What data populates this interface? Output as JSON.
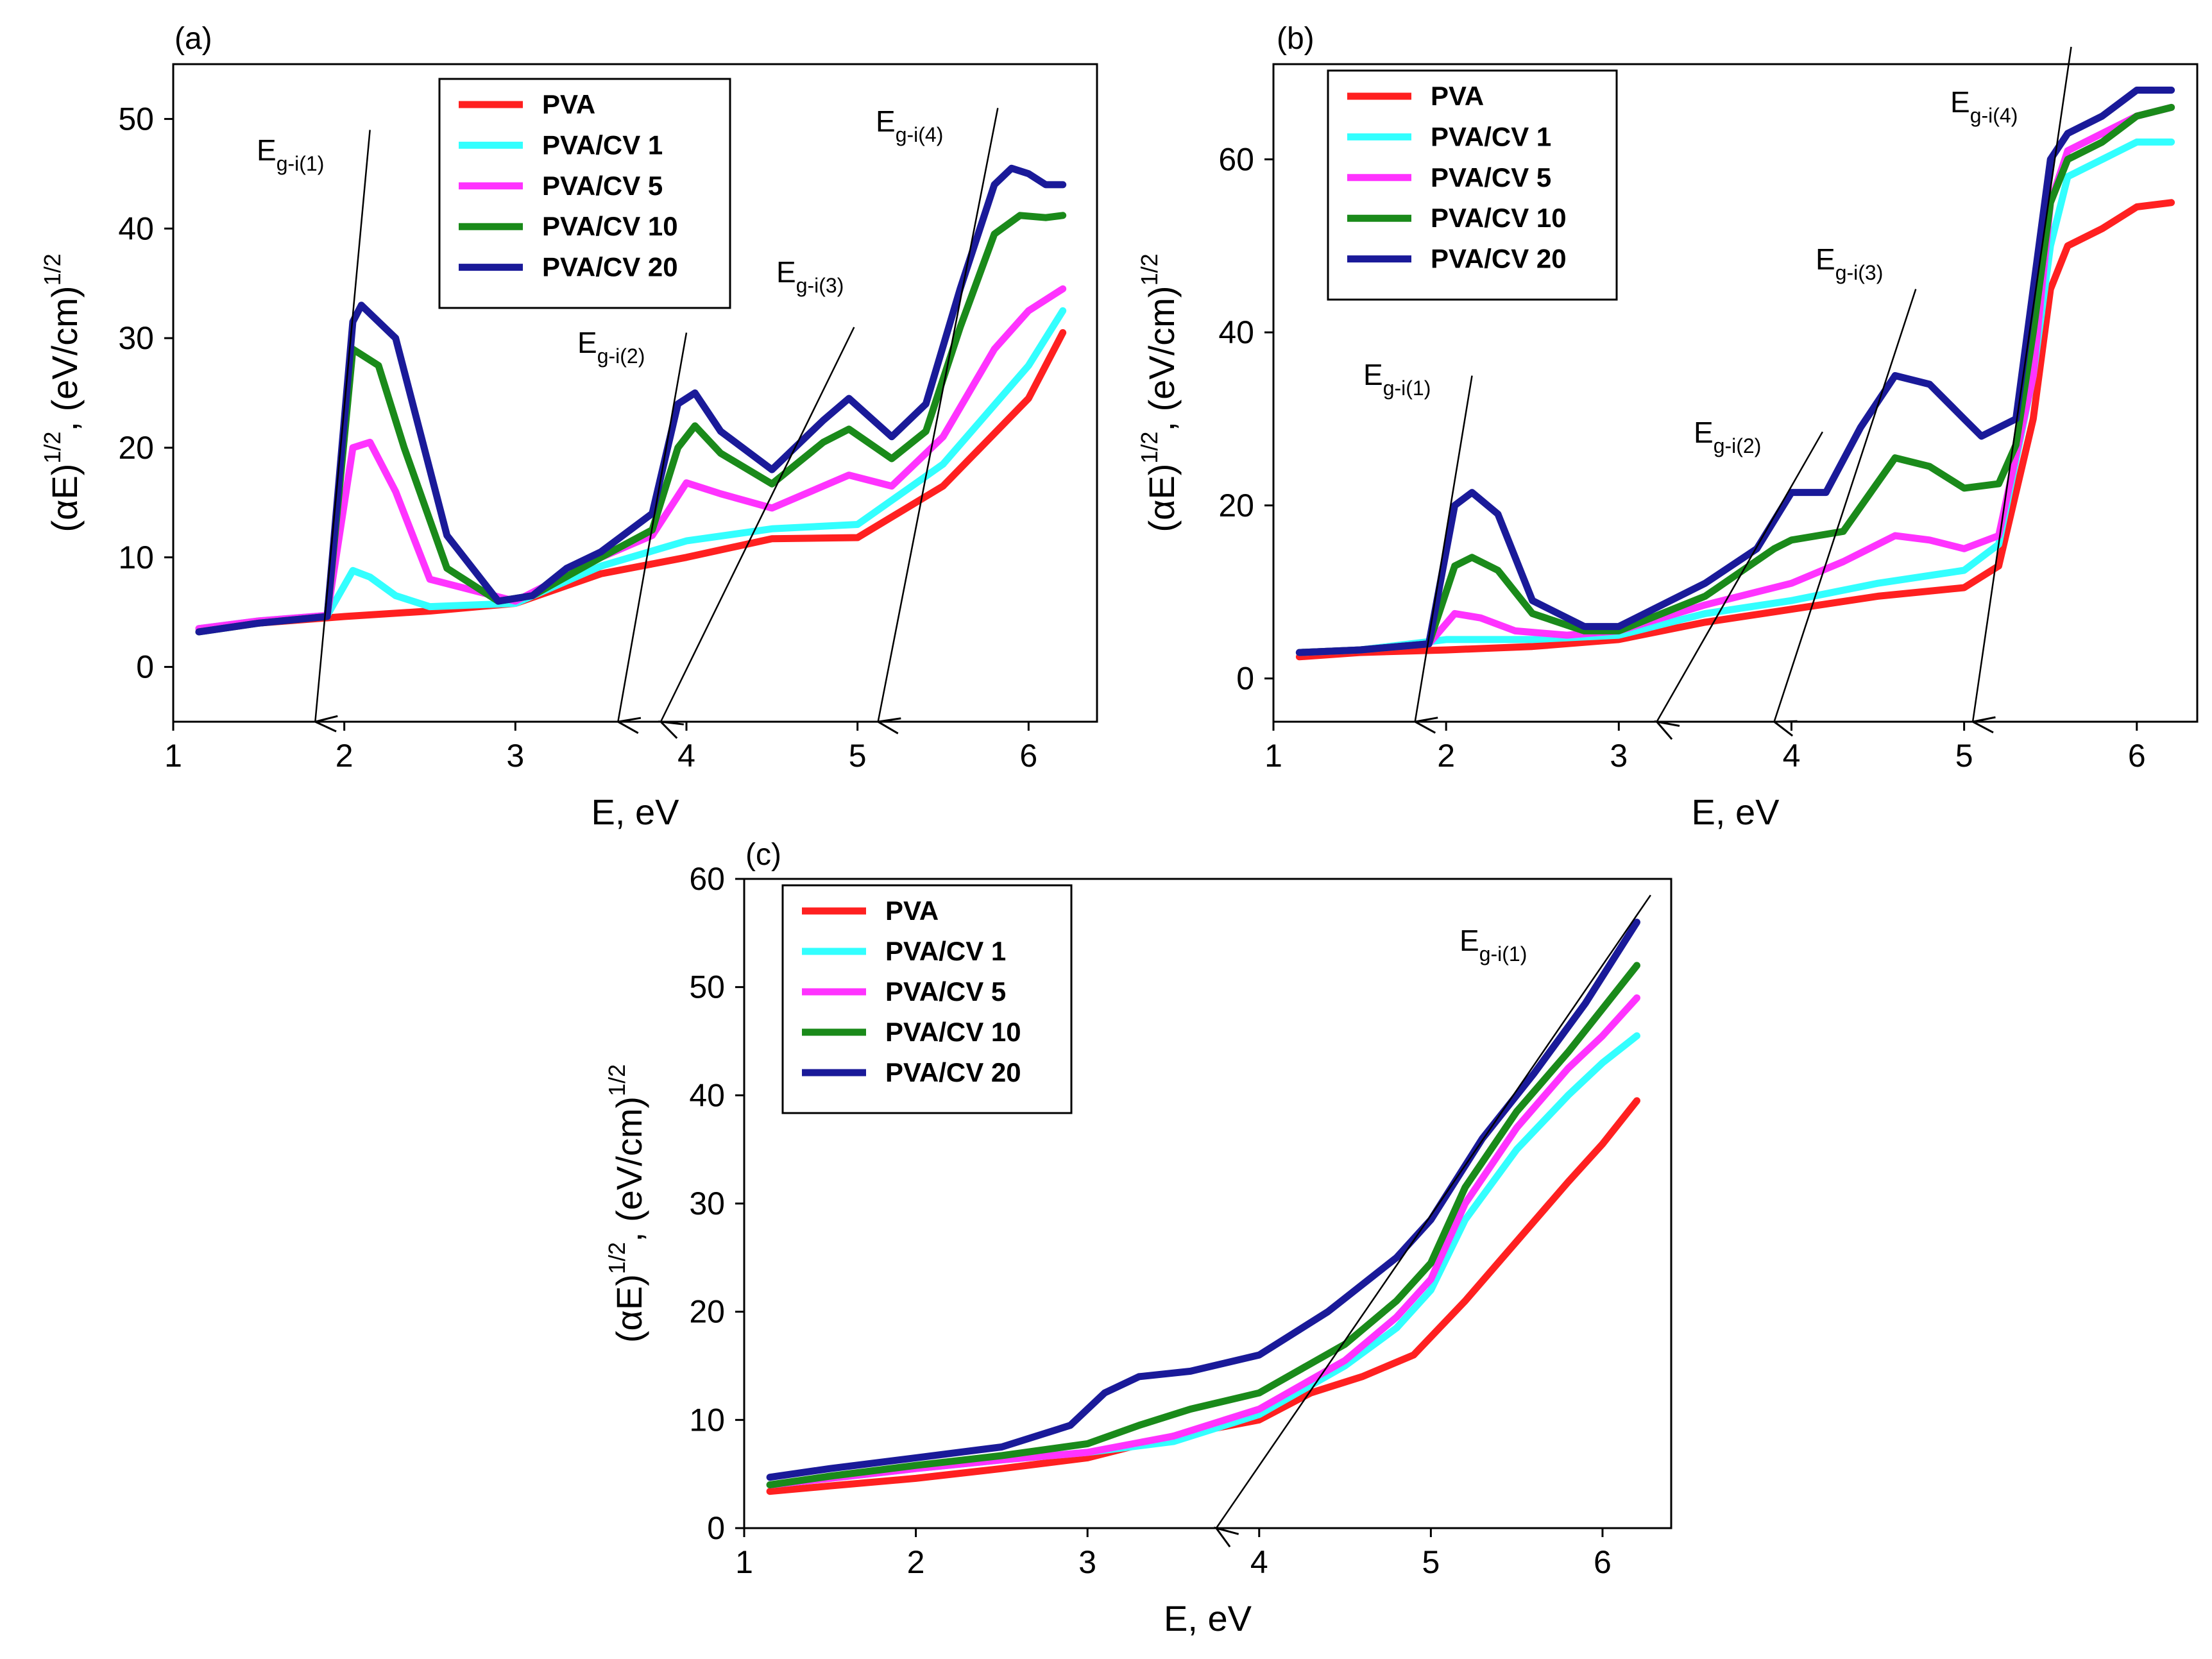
{
  "chart_data": [
    {
      "panel": "(a)",
      "type": "line",
      "xlabel": "E, eV",
      "ylabel": [
        "(αE)",
        "1/2",
        ", (eV/cm)",
        "1/2"
      ],
      "xlim": [
        1,
        6.4
      ],
      "ylim": [
        -5,
        55
      ],
      "xticks": [
        "1",
        "2",
        "3",
        "4",
        "5",
        "6"
      ],
      "yticks": [
        "0",
        "10",
        "20",
        "30",
        "40",
        "50"
      ],
      "legend": [
        "PVA",
        "PVA/CV 1",
        "PVA/CV 5",
        "PVA/CV 10",
        "PVA/CV 20"
      ],
      "legend_position": "top-center",
      "colors": [
        "#ff2020",
        "#33ffff",
        "#ff33ff",
        "#1a8a1a",
        "#1a1a99"
      ],
      "series": [
        {
          "name": "PVA",
          "x": [
            1.15,
            1.5,
            2.0,
            2.5,
            3.0,
            3.5,
            4.0,
            4.5,
            5.0,
            5.5,
            6.0,
            6.2
          ],
          "y": [
            3.5,
            4.0,
            4.6,
            5.1,
            5.8,
            8.5,
            10.0,
            11.7,
            11.8,
            16.5,
            24.5,
            30.5
          ]
        },
        {
          "name": "PVA/CV 1",
          "x": [
            1.15,
            1.5,
            1.9,
            2.05,
            2.15,
            2.3,
            2.5,
            3.0,
            3.5,
            4.0,
            4.5,
            5.0,
            5.5,
            6.0,
            6.2
          ],
          "y": [
            3.5,
            4.2,
            4.7,
            8.8,
            8.2,
            6.5,
            5.5,
            5.8,
            9.2,
            11.5,
            12.6,
            13.0,
            18.5,
            27.5,
            32.5
          ]
        },
        {
          "name": "PVA/CV 5",
          "x": [
            1.15,
            1.5,
            1.9,
            2.05,
            2.15,
            2.3,
            2.5,
            3.0,
            3.5,
            3.8,
            4.0,
            4.2,
            4.5,
            4.8,
            4.95,
            5.2,
            5.5,
            5.8,
            6.0,
            6.2
          ],
          "y": [
            3.5,
            4.2,
            4.7,
            20.0,
            20.5,
            16.0,
            8.0,
            6.0,
            10.0,
            12.0,
            16.8,
            15.8,
            14.5,
            16.5,
            17.5,
            16.5,
            21.0,
            29.0,
            32.5,
            34.5
          ]
        },
        {
          "name": "PVA/CV 10",
          "x": [
            1.15,
            1.5,
            1.9,
            2.05,
            2.2,
            2.35,
            2.6,
            2.9,
            3.1,
            3.5,
            3.8,
            3.95,
            4.05,
            4.2,
            4.5,
            4.8,
            4.95,
            5.2,
            5.4,
            5.6,
            5.8,
            5.95,
            6.1,
            6.2
          ],
          "y": [
            3.2,
            4.0,
            4.6,
            29.0,
            27.5,
            20.0,
            9.0,
            6.0,
            6.5,
            10.0,
            12.5,
            20.0,
            22.0,
            19.5,
            16.7,
            20.5,
            21.7,
            19.0,
            21.5,
            31.0,
            39.5,
            41.2,
            41.0,
            41.2
          ]
        },
        {
          "name": "PVA/CV 20",
          "x": [
            1.15,
            1.5,
            1.9,
            2.05,
            2.1,
            2.3,
            2.6,
            2.9,
            3.1,
            3.3,
            3.5,
            3.8,
            3.95,
            4.05,
            4.2,
            4.5,
            4.8,
            4.95,
            5.2,
            5.4,
            5.6,
            5.8,
            5.9,
            6.0,
            6.1,
            6.2
          ],
          "y": [
            3.2,
            4.0,
            4.6,
            31.5,
            33.0,
            30.0,
            12.0,
            6.0,
            6.5,
            9.0,
            10.5,
            14.0,
            24.0,
            25.0,
            21.5,
            18.0,
            22.5,
            24.5,
            21.0,
            24.0,
            34.5,
            44.0,
            45.5,
            45.0,
            44.0,
            44.0
          ]
        }
      ],
      "annotations": [
        {
          "label": "E",
          "sub": "g-i(1)",
          "from": [
            2.15,
            49
          ],
          "to": [
            1.83,
            -5
          ]
        },
        {
          "label": "E",
          "sub": "g-i(2)",
          "from": [
            4.0,
            30.5
          ],
          "to": [
            3.6,
            -5
          ]
        },
        {
          "label": "E",
          "sub": "g-i(3)",
          "from": [
            4.98,
            31
          ],
          "to": [
            3.85,
            -5
          ]
        },
        {
          "label": "E",
          "sub": "g-i(4)",
          "from": [
            5.82,
            51
          ],
          "to": [
            5.12,
            -5
          ]
        }
      ]
    },
    {
      "panel": "(b)",
      "type": "line",
      "xlabel": "E, eV",
      "ylabel": [
        "(αE)",
        "1/2",
        ", (eV/cm)",
        "1/2"
      ],
      "xlim": [
        1,
        6.35
      ],
      "ylim": [
        -5,
        71
      ],
      "xticks": [
        "1",
        "2",
        "3",
        "4",
        "5",
        "6"
      ],
      "yticks": [
        "0",
        "20",
        "40",
        "60"
      ],
      "legend": [
        "PVA",
        "PVA/CV 1",
        "PVA/CV 5",
        "PVA/CV 10",
        "PVA/CV 20"
      ],
      "legend_position": "top-left",
      "colors": [
        "#ff2020",
        "#33ffff",
        "#ff33ff",
        "#1a8a1a",
        "#1a1a99"
      ],
      "series": [
        {
          "name": "PVA",
          "x": [
            1.15,
            1.5,
            2.0,
            2.5,
            3.0,
            3.5,
            4.0,
            4.5,
            5.0,
            5.2,
            5.4,
            5.5,
            5.6,
            5.8,
            6.0,
            6.2
          ],
          "y": [
            2.5,
            3.0,
            3.3,
            3.7,
            4.5,
            6.5,
            8.0,
            9.5,
            10.5,
            13.0,
            30.0,
            45.0,
            50.0,
            52.0,
            54.5,
            55.0
          ]
        },
        {
          "name": "PVA/CV 1",
          "x": [
            1.15,
            1.5,
            2.0,
            2.5,
            3.0,
            3.5,
            4.0,
            4.5,
            5.0,
            5.2,
            5.4,
            5.5,
            5.6,
            5.8,
            6.0,
            6.2
          ],
          "y": [
            3.0,
            3.3,
            4.5,
            4.5,
            5.0,
            7.5,
            9.0,
            11.0,
            12.5,
            15.5,
            35.0,
            50.0,
            58.0,
            60.0,
            62.0,
            62.0
          ]
        },
        {
          "name": "PVA/CV 5",
          "x": [
            1.15,
            1.5,
            1.9,
            2.05,
            2.2,
            2.4,
            2.7,
            3.0,
            3.5,
            4.0,
            4.3,
            4.6,
            4.8,
            5.0,
            5.2,
            5.4,
            5.5,
            5.6,
            5.8,
            6.0,
            6.2
          ],
          "y": [
            3.0,
            3.3,
            4.0,
            7.5,
            7.0,
            5.5,
            5.0,
            5.5,
            8.5,
            11.0,
            13.5,
            16.5,
            16.0,
            15.0,
            16.5,
            35.0,
            55.0,
            61.0,
            63.0,
            65.0,
            66.0
          ]
        },
        {
          "name": "PVA/CV 10",
          "x": [
            1.15,
            1.5,
            1.9,
            2.05,
            2.15,
            2.3,
            2.5,
            2.8,
            3.0,
            3.5,
            3.9,
            4.0,
            4.3,
            4.6,
            4.8,
            5.0,
            5.2,
            5.3,
            5.4,
            5.5,
            5.6,
            5.8,
            6.0,
            6.2
          ],
          "y": [
            3.0,
            3.3,
            4.0,
            13.0,
            14.0,
            12.5,
            7.5,
            5.5,
            5.5,
            9.5,
            15.0,
            16.0,
            17.0,
            25.5,
            24.5,
            22.0,
            22.5,
            27.0,
            40.0,
            55.0,
            60.0,
            62.0,
            65.0,
            66.0
          ]
        },
        {
          "name": "PVA/CV 20",
          "x": [
            1.15,
            1.5,
            1.9,
            2.05,
            2.15,
            2.3,
            2.5,
            2.8,
            3.0,
            3.5,
            3.8,
            4.0,
            4.2,
            4.4,
            4.6,
            4.8,
            5.0,
            5.1,
            5.3,
            5.4,
            5.5,
            5.6,
            5.8,
            6.0,
            6.2
          ],
          "y": [
            3.0,
            3.3,
            4.0,
            20.0,
            21.5,
            19.0,
            9.0,
            6.0,
            6.0,
            11.0,
            15.0,
            21.5,
            21.5,
            29.0,
            35.0,
            34.0,
            30.0,
            28.0,
            30.0,
            45.0,
            60.0,
            63.0,
            65.0,
            68.0,
            68.0
          ]
        }
      ],
      "annotations": [
        {
          "label": "E",
          "sub": "g-i(1)",
          "from": [
            2.15,
            35
          ],
          "to": [
            1.82,
            -5
          ]
        },
        {
          "label": "E",
          "sub": "g-i(2)",
          "from": [
            4.18,
            28.5
          ],
          "to": [
            3.22,
            -5
          ]
        },
        {
          "label": "E",
          "sub": "g-i(3)",
          "from": [
            4.72,
            45
          ],
          "to": [
            3.9,
            -5
          ]
        },
        {
          "label": "E",
          "sub": "g-i(4)",
          "from": [
            5.62,
            73
          ],
          "to": [
            5.05,
            -5
          ]
        }
      ]
    },
    {
      "panel": "(c)",
      "type": "line",
      "xlabel": "E, eV",
      "ylabel": [
        "(αE)",
        "1/2",
        ", (eV/cm)",
        "1/2"
      ],
      "xlim": [
        1,
        6.4
      ],
      "ylim": [
        0,
        60
      ],
      "xticks": [
        "1",
        "2",
        "3",
        "4",
        "5",
        "6"
      ],
      "yticks": [
        "0",
        "10",
        "20",
        "30",
        "40",
        "50",
        "60"
      ],
      "legend": [
        "PVA",
        "PVA/CV 1",
        "PVA/CV 5",
        "PVA/CV 10",
        "PVA/CV 20"
      ],
      "legend_position": "top-left",
      "colors": [
        "#ff2020",
        "#33ffff",
        "#ff33ff",
        "#1a8a1a",
        "#1a1a99"
      ],
      "series": [
        {
          "name": "PVA",
          "x": [
            1.15,
            1.5,
            2.0,
            2.5,
            3.0,
            3.5,
            4.0,
            4.3,
            4.6,
            4.9,
            5.2,
            5.5,
            5.8,
            6.0,
            6.2
          ],
          "y": [
            3.4,
            3.9,
            4.6,
            5.5,
            6.5,
            8.5,
            10.0,
            12.5,
            14.0,
            16.0,
            21.0,
            26.5,
            32.0,
            35.5,
            39.5
          ]
        },
        {
          "name": "PVA/CV 1",
          "x": [
            1.15,
            1.5,
            2.0,
            2.5,
            3.0,
            3.5,
            4.0,
            4.5,
            4.8,
            5.0,
            5.2,
            5.5,
            5.8,
            6.0,
            6.2
          ],
          "y": [
            4.0,
            4.6,
            5.5,
            6.3,
            7.0,
            8.0,
            10.5,
            15.0,
            18.5,
            22.0,
            28.5,
            35.0,
            40.0,
            43.0,
            45.5
          ]
        },
        {
          "name": "PVA/CV 5",
          "x": [
            1.15,
            1.5,
            2.0,
            2.5,
            3.0,
            3.5,
            4.0,
            4.5,
            4.8,
            5.0,
            5.2,
            5.5,
            5.8,
            6.0,
            6.2
          ],
          "y": [
            4.0,
            4.6,
            5.5,
            6.3,
            7.0,
            8.5,
            11.0,
            15.5,
            19.5,
            23.0,
            30.0,
            37.0,
            42.5,
            45.5,
            49.0
          ]
        },
        {
          "name": "PVA/CV 10",
          "x": [
            1.15,
            1.5,
            2.0,
            2.5,
            3.0,
            3.3,
            3.6,
            4.0,
            4.5,
            4.8,
            5.0,
            5.2,
            5.5,
            5.8,
            6.0,
            6.2
          ],
          "y": [
            4.0,
            4.8,
            5.8,
            6.7,
            7.8,
            9.5,
            11.0,
            12.5,
            17.0,
            21.0,
            24.5,
            31.5,
            38.5,
            44.0,
            48.0,
            52.0
          ]
        },
        {
          "name": "PVA/CV 20",
          "x": [
            1.15,
            1.5,
            2.0,
            2.5,
            2.9,
            3.1,
            3.3,
            3.6,
            4.0,
            4.4,
            4.8,
            5.0,
            5.3,
            5.6,
            5.9,
            6.2
          ],
          "y": [
            4.7,
            5.5,
            6.5,
            7.5,
            9.5,
            12.5,
            14.0,
            14.5,
            16.0,
            20.0,
            25.0,
            28.5,
            36.0,
            42.0,
            48.5,
            56.0
          ]
        }
      ],
      "annotations": [
        {
          "label": "E",
          "sub": "g-i(1)",
          "from": [
            6.28,
            58.5
          ],
          "to": [
            3.75,
            0
          ]
        }
      ]
    }
  ]
}
